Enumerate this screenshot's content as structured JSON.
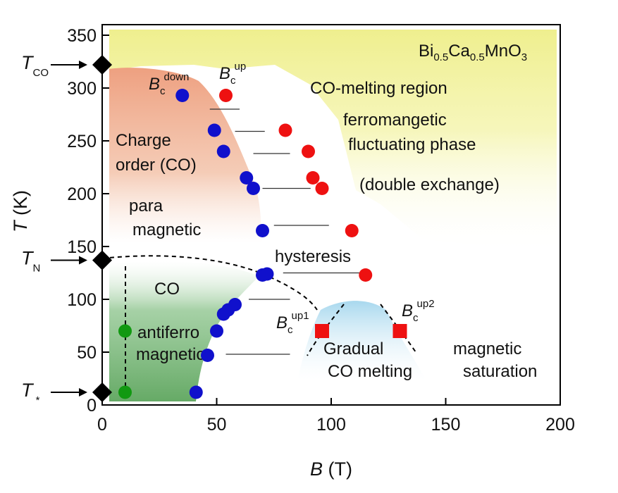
{
  "chart_data": {
    "type": "scatter",
    "title": "",
    "compound": {
      "main": "Bi",
      "s1": "0.5",
      "m2": "Ca",
      "s2": "0.5",
      "m3": "MnO",
      "s3": "3"
    },
    "xlabel": {
      "italic": "B",
      "rest": " (T)"
    },
    "ylabel": {
      "italic": "T",
      "rest": " (K)"
    },
    "xlim": [
      0,
      200
    ],
    "ylim": [
      0,
      360
    ],
    "xticks": [
      0,
      50,
      100,
      150,
      200
    ],
    "yticks": [
      0,
      50,
      100,
      150,
      200,
      250,
      300,
      350
    ],
    "grid": false,
    "legend": "none",
    "series": [
      {
        "name": "B_c^down",
        "color": "#1010cc",
        "marker": "circle",
        "points": [
          [
            35,
            293
          ],
          [
            49,
            260
          ],
          [
            53,
            240
          ],
          [
            63,
            215
          ],
          [
            66,
            205
          ],
          [
            70,
            165
          ],
          [
            70,
            123
          ],
          [
            72,
            124
          ],
          [
            55,
            90
          ],
          [
            58,
            95
          ],
          [
            53,
            86
          ],
          [
            50,
            70
          ],
          [
            46,
            47
          ],
          [
            41,
            12
          ]
        ]
      },
      {
        "name": "B_c^up",
        "color": "#ee1111",
        "marker": "circle",
        "points": [
          [
            54,
            293
          ],
          [
            80,
            260
          ],
          [
            90,
            240
          ],
          [
            92,
            215
          ],
          [
            96,
            205
          ],
          [
            109,
            165
          ],
          [
            115,
            123
          ]
        ]
      },
      {
        "name": "B_c^up1",
        "color": "#ee1111",
        "marker": "square",
        "points": [
          [
            96,
            70
          ]
        ]
      },
      {
        "name": "B_c^up2",
        "color": "#ee1111",
        "marker": "square",
        "points": [
          [
            130,
            70
          ]
        ]
      },
      {
        "name": "T*",
        "color": "#119911",
        "marker": "circle",
        "points": [
          [
            10,
            70
          ],
          [
            10,
            12
          ]
        ]
      }
    ],
    "axis_markers": [
      {
        "key": "tco",
        "sym": "T",
        "sub": "CO",
        "y": 322
      },
      {
        "key": "tn",
        "sym": "T",
        "sub": "N",
        "y": 137
      },
      {
        "key": "tstar",
        "sym": "T",
        "sub": " *",
        "y": 12
      }
    ],
    "point_labels": {
      "bc_down": {
        "sym": "B",
        "sub": "c",
        "sup": "down"
      },
      "bc_up": {
        "sym": "B",
        "sub": "c",
        "sup": "up"
      },
      "bc_up1": {
        "sym": "B",
        "sub": "c",
        "sup": "up1"
      },
      "bc_up2": {
        "sym": "B",
        "sub": "c",
        "sup": "up2"
      }
    },
    "annotations": {
      "co_melting": "CO-melting region",
      "ferro_1": "ferromangetic",
      "ferro_2": "fluctuating phase",
      "double_exchange": "(double exchange)",
      "charge_order_1": "Charge",
      "charge_order_2": "order (CO)",
      "para_1": "para",
      "para_2": "magnetic",
      "hysteresis": "hysteresis",
      "co": "CO",
      "afm_1": "antiferro",
      "afm_2": "magnetic",
      "gradual_1": "Gradual",
      "gradual_2": "CO melting",
      "saturation_1": "magnetic",
      "saturation_2": "saturation"
    },
    "colors": {
      "co_melting_region": "#eeee88",
      "charge_order_region": "#eea080",
      "afm_region": "#66aa66",
      "gradual_region": "#a8d8ee",
      "diamond": "#000000"
    }
  }
}
